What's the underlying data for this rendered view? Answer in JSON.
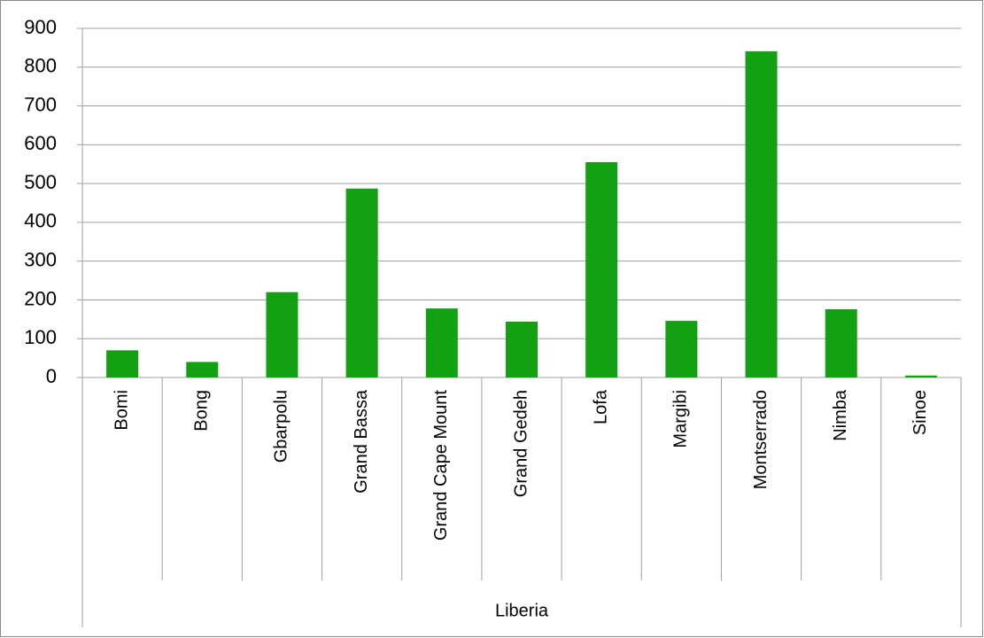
{
  "chart_data": {
    "type": "bar",
    "categories": [
      "Bomi",
      "Bong",
      "Gbarpolu",
      "Grand Bassa",
      "Grand Cape Mount",
      "Grand Gedeh",
      "Lofa",
      "Margibi",
      "Montserrado",
      "Nimba",
      "Sinoe"
    ],
    "category_group": "Liberia",
    "values": [
      70,
      40,
      220,
      487,
      178,
      144,
      555,
      146,
      841,
      176,
      5
    ],
    "color": "#13a013",
    "ylim": [
      0,
      900
    ],
    "yticks": [
      0,
      100,
      200,
      300,
      400,
      500,
      600,
      700,
      800,
      900
    ],
    "grid": true
  }
}
